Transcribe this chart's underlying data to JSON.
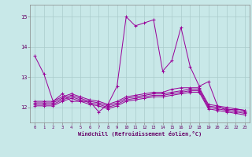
{
  "background_color": "#c8e8e8",
  "grid_color": "#aacccc",
  "line_color": "#990099",
  "xlabel": "Windchill (Refroidissement éolien,°C)",
  "xlim": [
    -0.5,
    23.5
  ],
  "ylim": [
    11.5,
    15.4
  ],
  "yticks": [
    12,
    13,
    14,
    15
  ],
  "xticks": [
    0,
    1,
    2,
    3,
    4,
    5,
    6,
    7,
    8,
    9,
    10,
    11,
    12,
    13,
    14,
    15,
    16,
    17,
    18,
    19,
    20,
    21,
    22,
    23
  ],
  "series": [
    [
      13.7,
      13.1,
      12.2,
      12.45,
      12.2,
      12.2,
      12.2,
      11.85,
      12.1,
      12.7,
      15.0,
      14.7,
      14.8,
      14.9,
      13.2,
      13.55,
      14.65,
      13.35,
      12.7,
      12.85,
      12.05,
      11.9,
      11.95,
      11.9
    ],
    [
      12.2,
      12.2,
      12.2,
      12.35,
      12.45,
      12.35,
      12.25,
      12.2,
      12.1,
      12.2,
      12.35,
      12.4,
      12.45,
      12.5,
      12.5,
      12.6,
      12.65,
      12.65,
      12.65,
      12.1,
      12.05,
      12.0,
      11.95,
      11.9
    ],
    [
      12.15,
      12.15,
      12.15,
      12.3,
      12.4,
      12.3,
      12.2,
      12.15,
      12.05,
      12.15,
      12.3,
      12.35,
      12.4,
      12.45,
      12.45,
      12.5,
      12.55,
      12.6,
      12.6,
      12.05,
      12.0,
      11.95,
      11.9,
      11.85
    ],
    [
      12.1,
      12.1,
      12.1,
      12.25,
      12.35,
      12.25,
      12.15,
      12.1,
      12.0,
      12.1,
      12.25,
      12.3,
      12.35,
      12.4,
      12.4,
      12.45,
      12.5,
      12.55,
      12.55,
      12.0,
      11.95,
      11.9,
      11.85,
      11.8
    ],
    [
      12.05,
      12.05,
      12.05,
      12.2,
      12.3,
      12.2,
      12.1,
      12.05,
      11.95,
      12.05,
      12.2,
      12.25,
      12.3,
      12.35,
      12.35,
      12.4,
      12.45,
      12.5,
      12.5,
      11.95,
      11.9,
      11.85,
      11.8,
      11.75
    ]
  ]
}
